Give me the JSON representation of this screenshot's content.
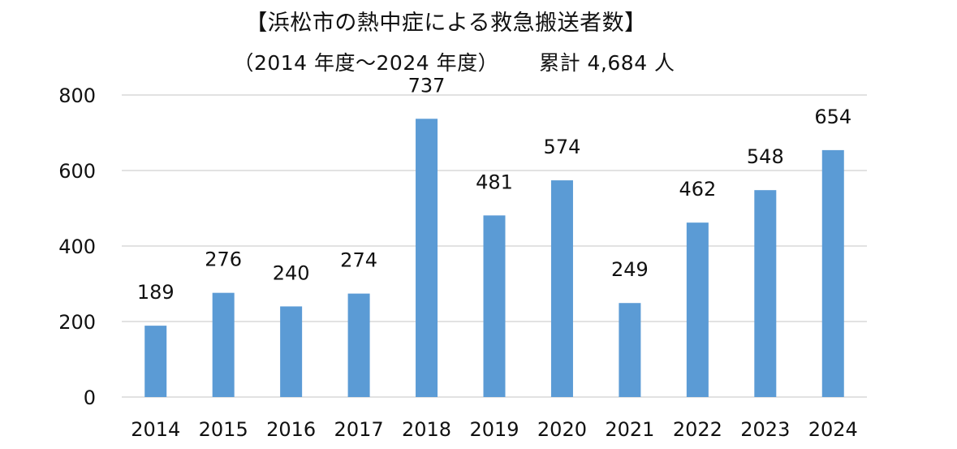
{
  "chart_data": {
    "type": "bar",
    "title": "【浜松市の熱中症による救急搬送者数】",
    "subtitle_period": "（2014 年度～2024 年度）",
    "subtitle_total": "累計 4,684 人",
    "categories": [
      "2014",
      "2015",
      "2016",
      "2017",
      "2018",
      "2019",
      "2020",
      "2021",
      "2022",
      "2023",
      "2024"
    ],
    "values": [
      189,
      276,
      240,
      274,
      737,
      481,
      574,
      249,
      462,
      548,
      654
    ],
    "data_labels": [
      "189",
      "276",
      "240",
      "274",
      "737",
      "481",
      "574",
      "249",
      "462",
      "548",
      "654"
    ],
    "y_ticks": [
      0,
      200,
      400,
      600,
      800
    ],
    "y_tick_labels": [
      "0",
      "200",
      "400",
      "600",
      "800"
    ],
    "ylim": [
      0,
      800
    ],
    "xlabel": "",
    "ylabel": "",
    "grid": true,
    "legend": "none",
    "bar_color": "#5B9BD5",
    "grid_color": "#D9D9D9"
  }
}
